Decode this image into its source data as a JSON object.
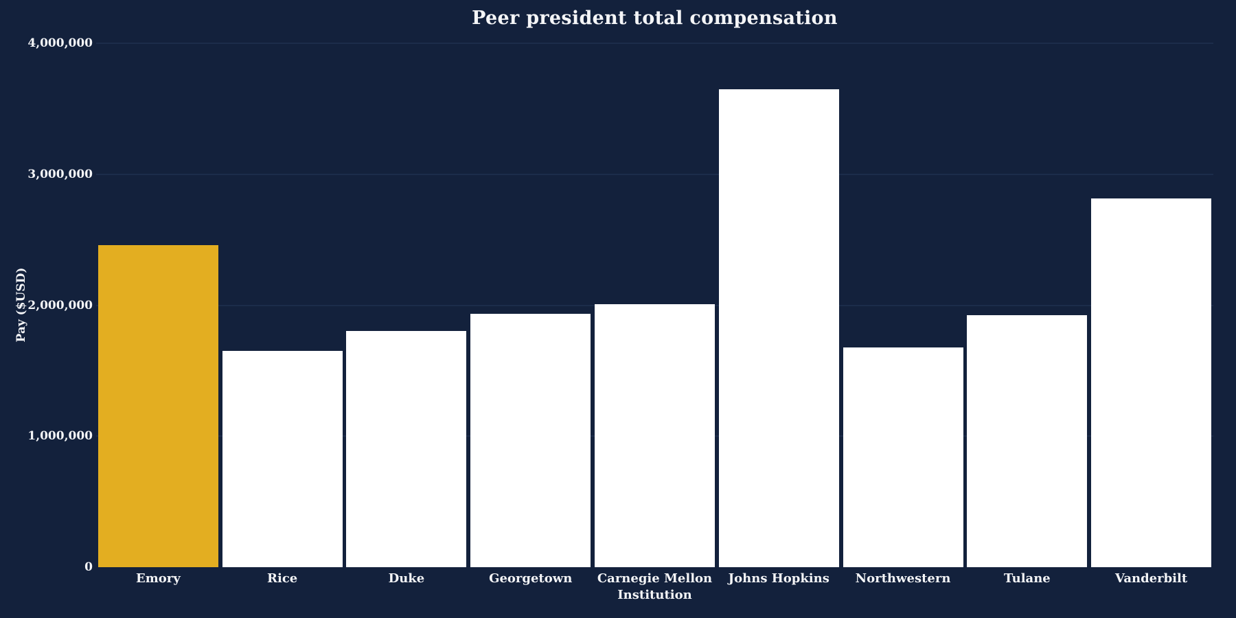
{
  "chart_data": {
    "type": "bar",
    "title": "Peer president total compensation",
    "xlabel": "Institution",
    "ylabel": "Pay ($USD)",
    "categories": [
      "Emory",
      "Rice",
      "Duke",
      "Georgetown",
      "Carnegie Mellon",
      "Johns Hopkins",
      "Northwestern",
      "Tulane",
      "Vanderbilt"
    ],
    "values": [
      2460000,
      1650000,
      1805000,
      1935000,
      2010000,
      3650000,
      1680000,
      1925000,
      2815000
    ],
    "highlight_category": "Emory",
    "ylim": [
      0,
      4000000
    ],
    "yticks": [
      0,
      1000000,
      2000000,
      3000000,
      4000000
    ],
    "ytick_labels": [
      "0",
      "1,000,000",
      "2,000,000",
      "3,000,000",
      "4,000,000"
    ],
    "grid": true,
    "legend": false,
    "colors": {
      "background": "#13213C",
      "bar": "#FFFFFF",
      "highlight": "#E3AE21",
      "gridline": "#1C2C4A",
      "text": "#F4F5F7"
    }
  }
}
